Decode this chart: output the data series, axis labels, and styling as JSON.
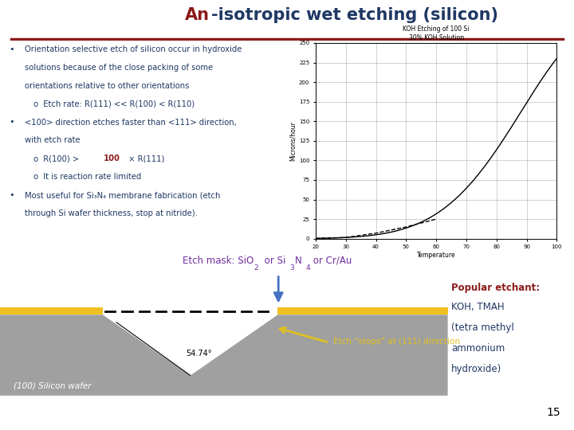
{
  "title_an": "An",
  "title_rest": "-isotropic wet etching (silicon)",
  "title_color_an": "#8B1A1A",
  "title_color_rest": "#1F3864",
  "title_underline_color": "#8B1A1A",
  "bg_color": "#FFFFFF",
  "text_color": "#1F3864",
  "bullet1_line1": "Orientation selective etch of silicon occur in hydroxide",
  "bullet1_line2": "solutions because of the close packing of some",
  "bullet1_line3": "orientations relative to other orientations",
  "bullet1_sub": "Etch rate: R(111) << R(100) < R(110)",
  "bullet2_line1": "<100> direction etches faster than <111> direction,",
  "bullet2_line2": "with etch rate",
  "bullet2_sub1a": "R(100) > ",
  "bullet2_sub1b": "100",
  "bullet2_sub1c": " × R(111)",
  "bullet2_sub2": "It is reaction rate limited",
  "bullet3_line1": "Most useful for Si₃N₄ membrane fabrication (etch",
  "bullet3_line2": "through Si wafer thickness, stop at nitride).",
  "etch_mask_label": "Etch mask: SiO₂ or Si₃N₄ or Cr/Au",
  "angle_label": "54.74°",
  "wafer_label": "(100) Silicon wafer",
  "etch_stops_label": "Etch “stops” at (111) direction",
  "popular_line1": "Popular etchant:",
  "popular_line2": "KOH, TMAH",
  "popular_line3": "(tetra methyl",
  "popular_line4": "ammonium",
  "popular_line5": "hydroxide)",
  "popular_color1": "#8B1A1A",
  "popular_color2": "#1F3864",
  "page_number": "15",
  "graph_title1": "KOH Etching of 100 Si",
  "graph_title2": "30% KOH Solution",
  "graph_xlabel": "Temperature",
  "graph_ylabel": "Microns/hour",
  "graph_temps": [
    20,
    30,
    40,
    50,
    60,
    70,
    80,
    90,
    100
  ],
  "graph_rates": [
    0.3,
    1.5,
    7,
    15,
    25,
    50,
    135,
    175,
    235
  ],
  "slide_bg": "#FFFFFF",
  "gold_color": "#F0C020",
  "silicon_color": "#A0A0A0",
  "silicon_dark": "#787878",
  "etch_pit_color": "#FFFFFF",
  "arrow_color_etch": "#4472C4",
  "arrow_color_stops": "#E0C020",
  "label_color_etch": "#7030A0",
  "label_color_stops": "#E0C020",
  "dashes_color": "#000000",
  "angle_line_color": "#000000"
}
